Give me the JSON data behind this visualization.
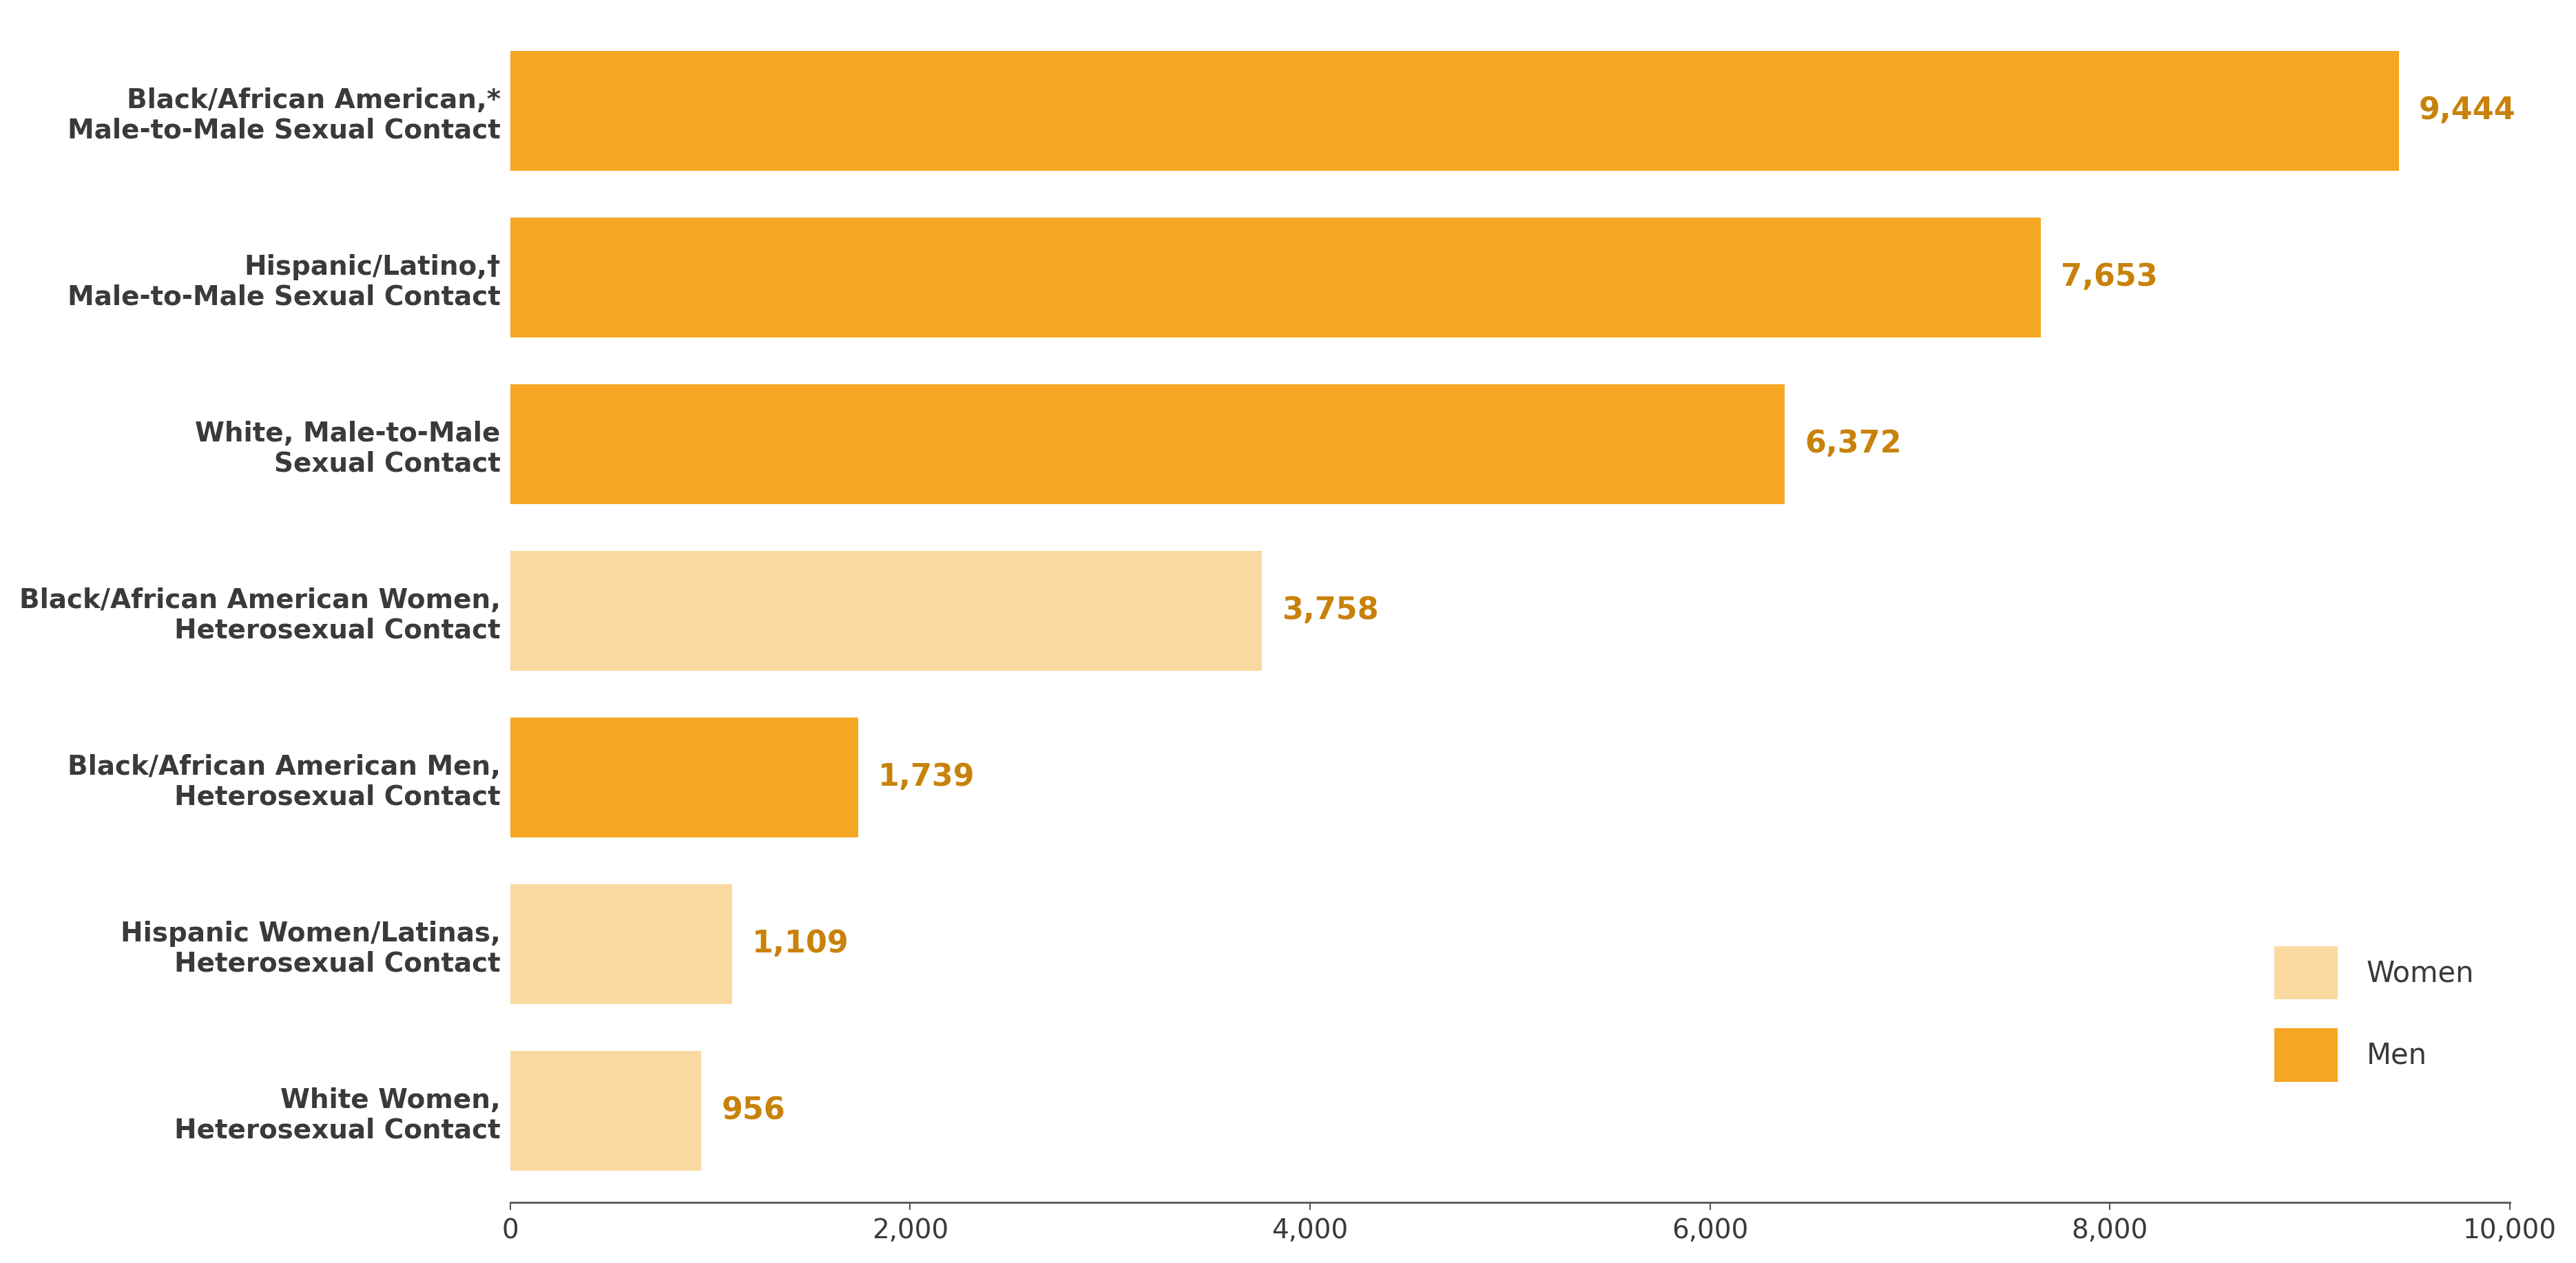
{
  "categories": [
    "Black/African American,*\nMale-to-Male Sexual Contact",
    "Hispanic/Latino,†\nMale-to-Male Sexual Contact",
    "White, Male-to-Male\nSexual Contact",
    "Black/African American Women,\nHeterosexual Contact",
    "Black/African American Men,\nHeterosexual Contact",
    "Hispanic Women/Latinas,\nHeterosexual Contact",
    "White Women,\nHeterosexual Contact"
  ],
  "values": [
    9444,
    7653,
    6372,
    3758,
    1739,
    1109,
    956
  ],
  "bar_colors": [
    "#F5A623",
    "#F5A623",
    "#F5A623",
    "#FAD9A1",
    "#F5A623",
    "#FAD9A1",
    "#FAD9A1"
  ],
  "value_labels": [
    "9,444",
    "7,653",
    "6,372",
    "3,758",
    "1,739",
    "1,109",
    "956"
  ],
  "value_color": "#C8820A",
  "xlim": [
    0,
    10000
  ],
  "xticks": [
    0,
    2000,
    4000,
    6000,
    8000,
    10000
  ],
  "xtick_labels": [
    "0",
    "2,000",
    "4,000",
    "6,000",
    "8,000",
    "10,000"
  ],
  "background_color": "#FFFFFF",
  "bar_height": 0.72,
  "label_fontsize": 28,
  "tick_fontsize": 28,
  "value_fontsize": 32,
  "legend_fontsize": 30,
  "women_color": "#FAD9A1",
  "men_color": "#F5A623",
  "text_color": "#3A3A3A",
  "axis_color": "#555555"
}
